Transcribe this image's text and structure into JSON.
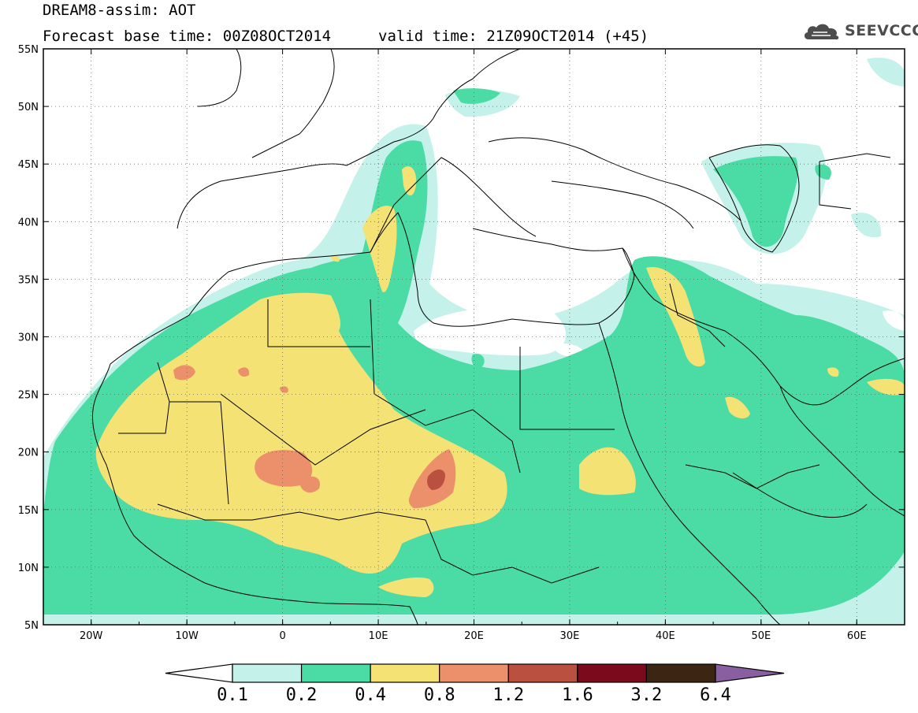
{
  "header": {
    "title": "DREAM8-assim: AOT",
    "base_time": "Forecast base time: 00Z08OCT2014",
    "valid_time": "valid time: 21Z09OCT2014 (+45)",
    "logo_text": "SEEVCCC"
  },
  "map": {
    "lon_range": [
      -25,
      65
    ],
    "lat_range": [
      5,
      55
    ],
    "lon_ticks": [
      {
        "value": -20,
        "label": "20W"
      },
      {
        "value": -10,
        "label": "10W"
      },
      {
        "value": 0,
        "label": "0"
      },
      {
        "value": 10,
        "label": "10E"
      },
      {
        "value": 20,
        "label": "20E"
      },
      {
        "value": 30,
        "label": "30E"
      },
      {
        "value": 40,
        "label": "40E"
      },
      {
        "value": 50,
        "label": "50E"
      },
      {
        "value": 60,
        "label": "60E"
      }
    ],
    "lat_ticks": [
      {
        "value": 55,
        "label": "55N"
      },
      {
        "value": 50,
        "label": "50N"
      },
      {
        "value": 45,
        "label": "45N"
      },
      {
        "value": 40,
        "label": "40N"
      },
      {
        "value": 35,
        "label": "35N"
      },
      {
        "value": 30,
        "label": "30N"
      },
      {
        "value": 25,
        "label": "25N"
      },
      {
        "value": 20,
        "label": "20N"
      },
      {
        "value": 15,
        "label": "15N"
      },
      {
        "value": 10,
        "label": "10N"
      },
      {
        "value": 5,
        "label": "5N"
      }
    ]
  },
  "colorbar": {
    "colors": [
      "#c4f2ea",
      "#4bdba4",
      "#f5e275",
      "#eb906a",
      "#ba5040",
      "#7a0a1c",
      "#3c2613"
    ],
    "below_color": "#ffffff",
    "above_color": "#8a5fa2",
    "labels": [
      "0.1",
      "0.2",
      "0.4",
      "0.8",
      "1.2",
      "1.6",
      "3.2",
      "6.4"
    ]
  }
}
